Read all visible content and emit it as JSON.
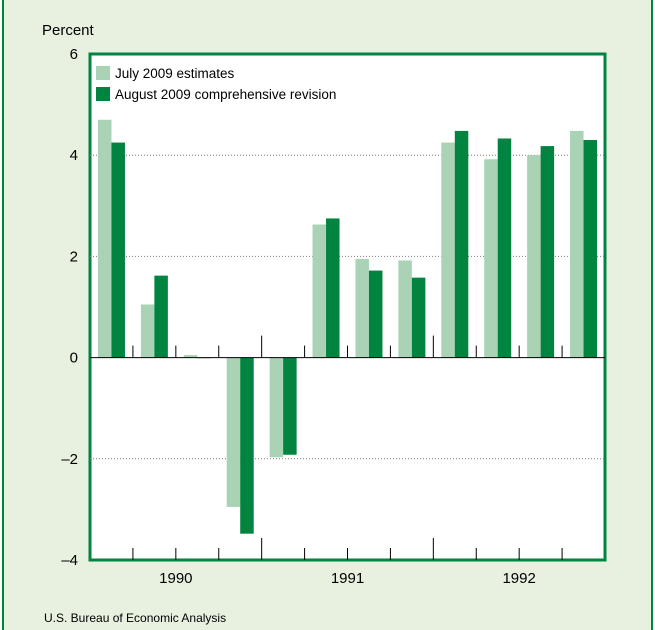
{
  "chart_data": {
    "type": "bar",
    "title": "",
    "ylabel": "Percent",
    "xlabel": "",
    "ylim": [
      -4,
      6
    ],
    "yticks": [
      6,
      4,
      2,
      0,
      -2,
      -4
    ],
    "ytick_labels": [
      "6",
      "4",
      "2",
      "0",
      "–2",
      "–4"
    ],
    "grid": true,
    "legend_position": "top-left",
    "year_labels": [
      "1990",
      "1991",
      "1992"
    ],
    "categories": [
      "1990 Q1",
      "1990 Q2",
      "1990 Q3",
      "1990 Q4",
      "1991 Q1",
      "1991 Q2",
      "1991 Q3",
      "1991 Q4",
      "1992 Q1",
      "1992 Q2",
      "1992 Q3",
      "1992 Q4"
    ],
    "series": [
      {
        "name": "July 2009 estimates",
        "color": "#a9d3b4",
        "values": [
          4.7,
          1.05,
          0.05,
          -2.95,
          -1.97,
          2.63,
          1.95,
          1.92,
          4.25,
          3.92,
          4.0,
          4.48
        ]
      },
      {
        "name": "August 2009 comprehensive revision",
        "color": "#00843f",
        "values": [
          4.25,
          1.62,
          0.0,
          -3.48,
          -1.92,
          2.75,
          1.72,
          1.58,
          4.48,
          4.33,
          4.18,
          4.3
        ]
      }
    ]
  },
  "source": "U.S. Bureau of Economic Analysis"
}
